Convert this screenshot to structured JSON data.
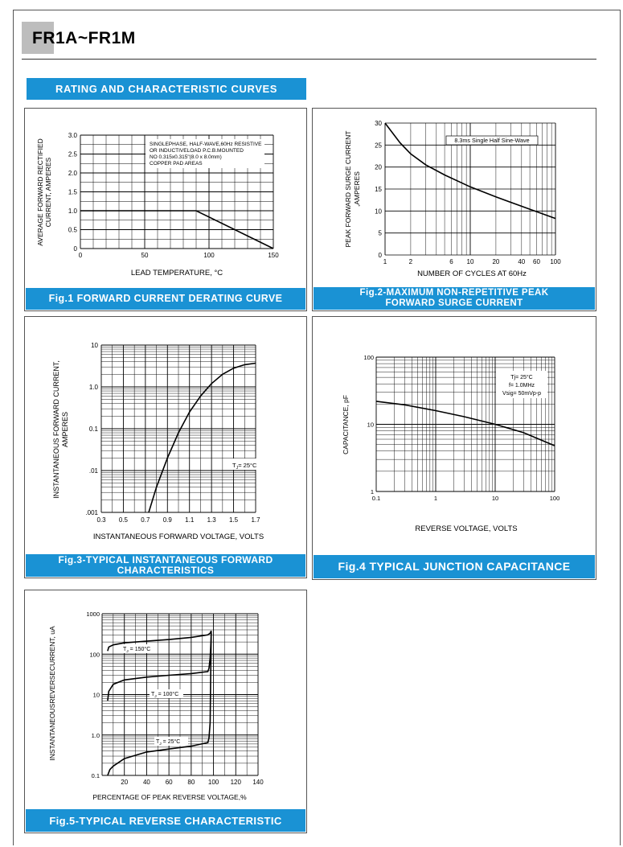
{
  "header": {
    "part_title": "FR1A~FR1M"
  },
  "section": {
    "heading": "RATING AND CHARACTERISTIC CURVES"
  },
  "fig1": {
    "caption": "Fig.1 FORWARD CURRENT DERATING CURVE",
    "chart_data": {
      "type": "line",
      "xlabel": "LEAD TEMPERATURE, °C",
      "ylabel": "AVERAGE FORWARD RECTIFIED CURRENT, AMPERES",
      "ylabel_lines": [
        "AVERAGE FORWARD RECTIFIED",
        "CURRENT, AMPERES"
      ],
      "xlim": [
        0,
        150
      ],
      "ylim": [
        0,
        3.0
      ],
      "x_ticks": [
        "0",
        "50",
        "100",
        "150"
      ],
      "y_ticks": [
        "0",
        "0.5",
        "1.0",
        "1.5",
        "2.0",
        "2.5",
        "3.0"
      ],
      "annotation": [
        "SINGLEPHASE, HALF-WAVE,60Hz RESISTIVE",
        "OR INDUCTIVELOAD P.C.B.MOUNTED",
        "NO 0.315x0.315\"(8.0 x 8.0mm)",
        "COPPER PAD AREAS"
      ],
      "x": [
        0,
        90,
        150
      ],
      "y": [
        1.0,
        1.0,
        0
      ]
    }
  },
  "fig2": {
    "caption": "Fig.2-MAXIMUM NON-REPETITIVE PEAK\nFORWARD SURGE CURRENT",
    "chart_data": {
      "type": "line",
      "xlabel": "NUMBER OF CYCLES AT 60Hz",
      "ylabel": "PEAK FORWARD SURGE CURRENT ,AMPERES",
      "ylabel_lines": [
        "PEAK FORWARD SURGE CURRENT",
        ",AMPERES"
      ],
      "xscale": "log",
      "xlim": [
        1,
        100
      ],
      "ylim": [
        0,
        30
      ],
      "x_ticks": [
        "1",
        "2",
        "6",
        "10",
        "20",
        "40",
        "60",
        "100"
      ],
      "y_ticks": [
        "0",
        "5",
        "10",
        "15",
        "20",
        "25",
        "30"
      ],
      "annotation": "8.3ms Single Half Sine-Wave",
      "x": [
        1,
        1.5,
        2,
        3,
        5,
        10,
        20,
        50,
        100
      ],
      "y": [
        30,
        25.5,
        23,
        20.5,
        18.2,
        15.5,
        13.2,
        10.4,
        8.3
      ]
    }
  },
  "fig3": {
    "caption": "Fig.3-TYPICAL INSTANTANEOUS FORWARD\nCHARACTERISTICS",
    "chart_data": {
      "type": "line",
      "xlabel": "INSTANTANEOUS FORWARD VOLTAGE, VOLTS",
      "ylabel": "INSTANTANEOUS FORWARD CURRENT, AMPERES",
      "ylabel_lines": [
        "INSTANTANEOUS FORWARD CURRENT,",
        "AMPERES"
      ],
      "yscale": "log",
      "xlim": [
        0.3,
        1.7
      ],
      "ylim": [
        0.001,
        10
      ],
      "x_ticks": [
        "0.3",
        "0.5",
        "0.7",
        "0.9",
        "1.1",
        "1.3",
        "1.5",
        "1.7"
      ],
      "y_ticks": [
        ".001",
        ".01",
        "0.1",
        "1.0",
        "10"
      ],
      "annotation": {
        "pre": "T",
        "sub": "J",
        "post": "= 25°C"
      },
      "x": [
        0.73,
        0.8,
        0.9,
        1.0,
        1.1,
        1.2,
        1.3,
        1.4,
        1.5,
        1.6,
        1.7
      ],
      "y": [
        0.001,
        0.004,
        0.02,
        0.08,
        0.25,
        0.6,
        1.2,
        2.0,
        2.8,
        3.4,
        3.7
      ]
    }
  },
  "fig4": {
    "caption": "Fig.4 TYPICAL JUNCTION CAPACITANCE",
    "chart_data": {
      "type": "line",
      "xlabel": "REVERSE VOLTAGE, VOLTS",
      "ylabel": "CAPACITANCE, pF",
      "xscale": "log",
      "yscale": "log",
      "xlim": [
        0.1,
        100
      ],
      "ylim": [
        1,
        100
      ],
      "x_ticks": [
        "0.1",
        "1",
        "10",
        "100"
      ],
      "y_ticks": [
        "1",
        "10",
        "100"
      ],
      "annotation": [
        "Tj= 25°C",
        "f= 1.0MHz",
        "Vsig= 50mVp-p"
      ],
      "x": [
        0.1,
        0.3,
        1,
        3,
        10,
        30,
        100
      ],
      "y": [
        22,
        19.5,
        16,
        13,
        10,
        7.5,
        4.8
      ]
    }
  },
  "fig5": {
    "caption": "Fig.5-TYPICAL REVERSE CHARACTERISTIC",
    "chart_data": {
      "type": "line",
      "xlabel": "PERCENTAGE OF PEAK REVERSE VOLTAGE,%",
      "ylabel": "INSTANTANEOUSREVERSECURRENT, uA",
      "yscale": "log",
      "xlim": [
        0,
        140
      ],
      "ylim": [
        0.1,
        1000
      ],
      "x_ticks": [
        "20",
        "40",
        "60",
        "80",
        "100",
        "120",
        "140"
      ],
      "y_ticks": [
        "0.1",
        "1.0",
        "10",
        "100",
        "1000"
      ],
      "series": [
        {
          "name": "T=150°C",
          "label_pre": "T",
          "label_sub": "J",
          "label_post": " = 150°C",
          "x": [
            5,
            6,
            10,
            20,
            40,
            60,
            80,
            95,
            97,
            98
          ],
          "y": [
            120,
            150,
            170,
            190,
            210,
            230,
            260,
            300,
            330,
            380
          ]
        },
        {
          "name": "T=100°C",
          "label_pre": "T",
          "label_sub": "J",
          "label_post": " = 100°C",
          "x": [
            5,
            6,
            10,
            20,
            40,
            60,
            80,
            95,
            96,
            97,
            97.5,
            98
          ],
          "y": [
            7,
            12,
            18,
            23,
            27,
            30,
            33,
            37,
            45,
            80,
            150,
            330
          ]
        },
        {
          "name": "T=25°C",
          "label_pre": "T",
          "label_sub": "J",
          "label_post": " = 25°C",
          "x": [
            5,
            7,
            10,
            20,
            40,
            60,
            80,
            95,
            96,
            97,
            97.5,
            98
          ],
          "y": [
            0.1,
            0.14,
            0.17,
            0.26,
            0.38,
            0.45,
            0.53,
            0.65,
            0.85,
            2,
            30,
            370
          ]
        }
      ]
    }
  }
}
